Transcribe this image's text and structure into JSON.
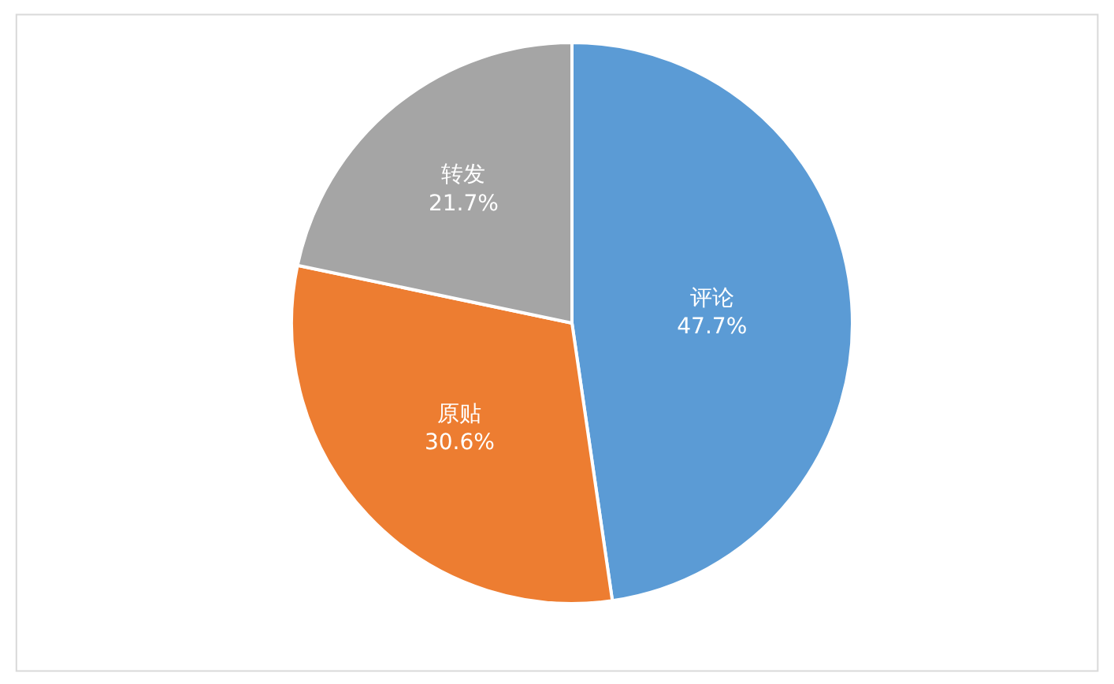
{
  "chart_data": {
    "type": "pie",
    "categories": [
      "评论",
      "原贴",
      "转发"
    ],
    "values": [
      47.7,
      30.6,
      21.7
    ],
    "value_labels": [
      "47.7%",
      "30.6%",
      "21.7%"
    ],
    "colors": [
      "#5b9bd5",
      "#ed7d31",
      "#a5a5a5"
    ],
    "legend": false
  }
}
